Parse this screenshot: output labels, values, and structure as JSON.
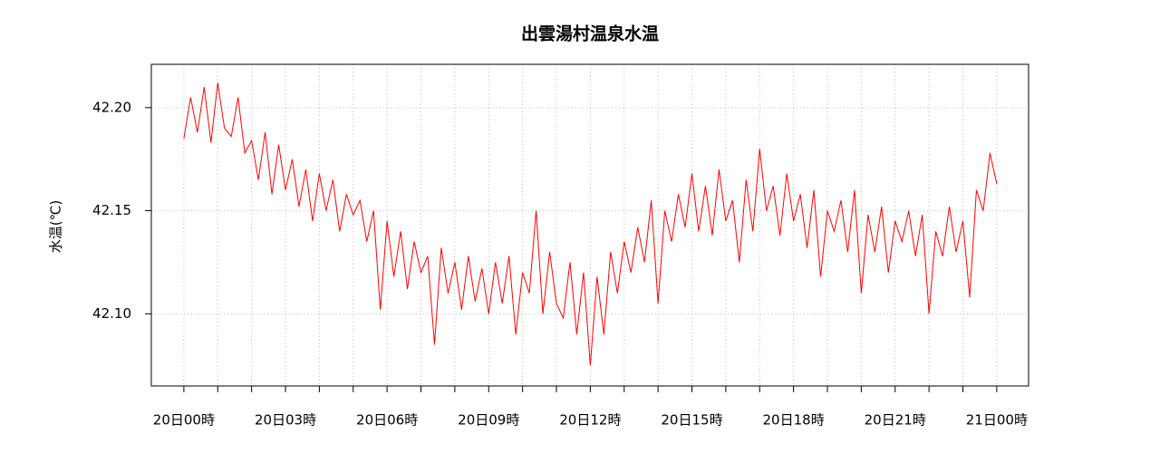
{
  "chart_data": {
    "type": "line",
    "title": "出雲湯村温泉水温",
    "y_label": "水温(℃)",
    "color": "#ff0000",
    "grid": true,
    "xlim": [
      -0.96,
      24.94
    ],
    "ylim": [
      42.065,
      42.221
    ],
    "yticks": [
      {
        "value": 42.1,
        "label": "42.10"
      },
      42.15,
      {
        "value": 42.2,
        "label": "42.20"
      }
    ],
    "xticks": [
      {
        "value": 0,
        "label": "20日00時"
      },
      {
        "value": 3,
        "label": "20日03時"
      },
      {
        "value": 6,
        "label": "20日06時"
      },
      {
        "value": 9,
        "label": "20日09時"
      },
      {
        "value": 12,
        "label": "20日12時"
      },
      {
        "value": 15,
        "label": "20日15時"
      },
      {
        "value": 18,
        "label": "20日18時"
      },
      {
        "value": 21,
        "label": "20日21時"
      },
      {
        "value": 24,
        "label": "21日00時"
      }
    ],
    "xminor_ticks": [
      1,
      2,
      4,
      5,
      7,
      8,
      10,
      11,
      13,
      14,
      16,
      17,
      19,
      20,
      22,
      23
    ],
    "x": [
      0,
      0.2,
      0.4,
      0.6,
      0.8,
      1,
      1.2,
      1.4,
      1.6,
      1.8,
      2,
      2.2,
      2.4,
      2.6,
      2.8,
      3,
      3.2,
      3.4,
      3.6,
      3.8,
      4,
      4.2,
      4.4,
      4.6,
      4.8,
      5,
      5.2,
      5.4,
      5.6,
      5.8,
      6,
      6.2,
      6.4,
      6.6,
      6.8,
      7,
      7.2,
      7.4,
      7.6,
      7.8,
      8,
      8.2,
      8.4,
      8.6,
      8.8,
      9,
      9.2,
      9.4,
      9.6,
      9.8,
      10,
      10.2,
      10.4,
      10.6,
      10.8,
      11,
      11.2,
      11.4,
      11.6,
      11.8,
      12,
      12.2,
      12.4,
      12.6,
      12.8,
      13,
      13.2,
      13.4,
      13.6,
      13.8,
      14,
      14.2,
      14.4,
      14.6,
      14.8,
      15,
      15.2,
      15.4,
      15.6,
      15.8,
      16,
      16.2,
      16.4,
      16.6,
      16.8,
      17,
      17.2,
      17.4,
      17.6,
      17.8,
      18,
      18.2,
      18.4,
      18.6,
      18.8,
      19,
      19.2,
      19.4,
      19.6,
      19.8,
      20,
      20.2,
      20.4,
      20.6,
      20.8,
      21,
      21.2,
      21.4,
      21.6,
      21.8,
      22,
      22.2,
      22.4,
      22.6,
      22.8,
      23,
      23.2,
      23.4,
      23.6,
      23.8,
      24
    ],
    "values": [
      42.185,
      42.205,
      42.188,
      42.21,
      42.183,
      42.212,
      42.19,
      42.186,
      42.205,
      42.178,
      42.184,
      42.165,
      42.188,
      42.158,
      42.182,
      42.16,
      42.175,
      42.152,
      42.17,
      42.145,
      42.168,
      42.15,
      42.165,
      42.14,
      42.158,
      42.148,
      42.155,
      42.135,
      42.15,
      42.102,
      42.145,
      42.118,
      42.14,
      42.112,
      42.135,
      42.12,
      42.128,
      42.085,
      42.132,
      42.11,
      42.125,
      42.102,
      42.128,
      42.106,
      42.122,
      42.1,
      42.125,
      42.105,
      42.128,
      42.09,
      42.12,
      42.11,
      42.15,
      42.1,
      42.13,
      42.105,
      42.098,
      42.125,
      42.09,
      42.12,
      42.075,
      42.118,
      42.09,
      42.13,
      42.11,
      42.135,
      42.12,
      42.142,
      42.125,
      42.155,
      42.105,
      42.15,
      42.135,
      42.158,
      42.142,
      42.168,
      42.14,
      42.162,
      42.138,
      42.17,
      42.145,
      42.155,
      42.125,
      42.165,
      42.14,
      42.18,
      42.15,
      42.162,
      42.138,
      42.168,
      42.145,
      42.158,
      42.132,
      42.16,
      42.118,
      42.15,
      42.14,
      42.155,
      42.13,
      42.16,
      42.11,
      42.148,
      42.13,
      42.152,
      42.12,
      42.145,
      42.135,
      42.15,
      42.128,
      42.148,
      42.1,
      42.14,
      42.128,
      42.152,
      42.13,
      42.145,
      42.108,
      42.16,
      42.15,
      42.178,
      42.163
    ]
  }
}
